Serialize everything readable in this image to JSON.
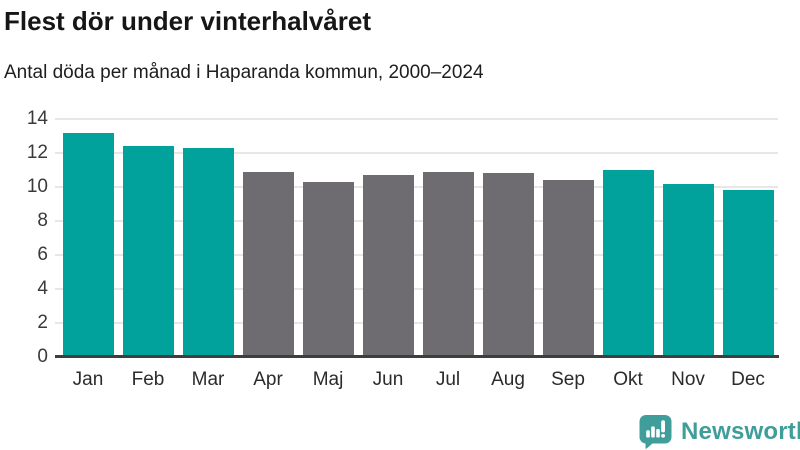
{
  "header": {
    "title": "Flest dör under vinterhalvåret",
    "subtitle": "Antal döda per månad i Haparanda kommun, 2000–2024"
  },
  "chart_data": {
    "type": "bar",
    "title": "Flest dör under vinterhalvåret",
    "subtitle": "Antal döda per månad i Haparanda kommun, 2000–2024",
    "categories": [
      "Jan",
      "Feb",
      "Mar",
      "Apr",
      "Maj",
      "Jun",
      "Jul",
      "Aug",
      "Sep",
      "Okt",
      "Nov",
      "Dec"
    ],
    "values": [
      13.2,
      12.4,
      12.3,
      10.9,
      10.3,
      10.7,
      10.9,
      10.8,
      10.4,
      11.0,
      10.2,
      9.8
    ],
    "xlabel": "",
    "ylabel": "",
    "ylim": [
      0,
      14
    ],
    "yticks": [
      0,
      2,
      4,
      6,
      8,
      10,
      12,
      14
    ],
    "grid": true,
    "legend": false,
    "highlight_color": "#00a29b",
    "base_color": "#6e6c71",
    "bar_colors": [
      "#00a29b",
      "#00a29b",
      "#00a29b",
      "#6e6c71",
      "#6e6c71",
      "#6e6c71",
      "#6e6c71",
      "#6e6c71",
      "#6e6c71",
      "#00a29b",
      "#00a29b",
      "#00a29b"
    ],
    "gridline_color": "#e7e7e7",
    "axis_line_color": "#3e3e3e"
  },
  "footer": {
    "brand": "Newsworthy",
    "brand_color": "#3f9e99",
    "logo_icon": "speech-bubble-bar-chart-icon"
  }
}
